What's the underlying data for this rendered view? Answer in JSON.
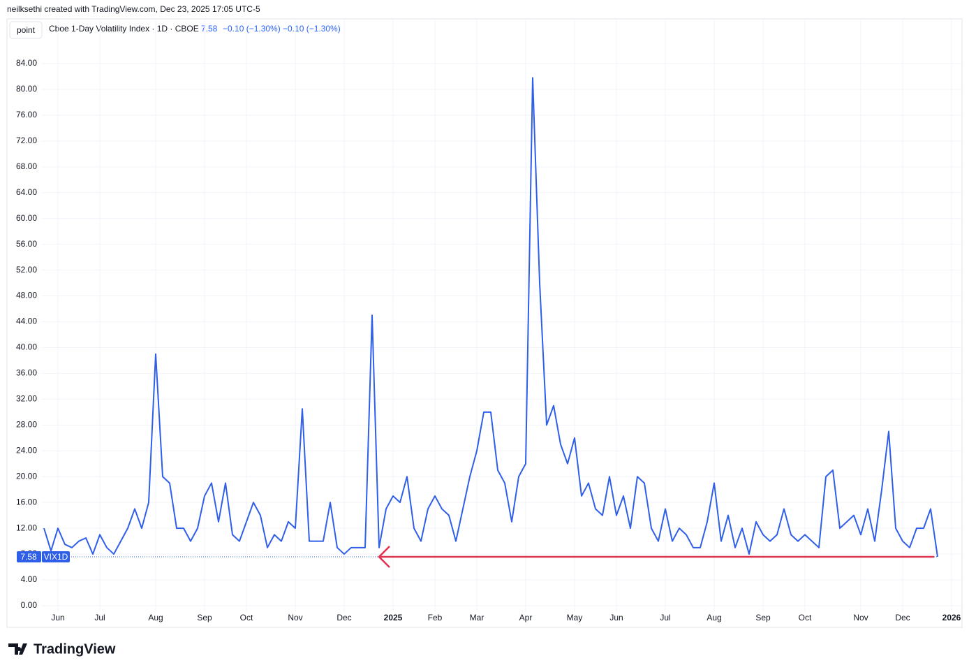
{
  "header": "neilksethi created with TradingView.com, Dec 23, 2025 17:05 UTC-5",
  "legend": {
    "button": "point",
    "instrument": "Cboe 1-Day Volatility Index · 1D · CBOE",
    "change": "−0.10 (−1.30%)"
  },
  "price_tag": "VIX1D",
  "branding": "TradingView",
  "chart_data": {
    "type": "line",
    "categories": [
      null,
      null,
      "Jun",
      null,
      null,
      null,
      null,
      null,
      "Jul",
      null,
      null,
      null,
      null,
      null,
      null,
      null,
      "Aug",
      null,
      null,
      null,
      null,
      null,
      null,
      "Sep",
      null,
      null,
      null,
      null,
      null,
      "Oct",
      null,
      null,
      null,
      null,
      null,
      null,
      "Nov",
      null,
      null,
      null,
      null,
      null,
      null,
      "Dec",
      null,
      null,
      null,
      null,
      null,
      null,
      "2025",
      null,
      null,
      null,
      null,
      null,
      "Feb",
      null,
      null,
      null,
      null,
      null,
      "Mar",
      null,
      null,
      null,
      null,
      null,
      null,
      "Apr",
      null,
      null,
      null,
      null,
      null,
      null,
      "May",
      null,
      null,
      null,
      null,
      null,
      "Jun",
      null,
      null,
      null,
      null,
      null,
      null,
      "Jul",
      null,
      null,
      null,
      null,
      null,
      null,
      "Aug",
      null,
      null,
      null,
      null,
      null,
      null,
      "Sep",
      null,
      null,
      null,
      null,
      null,
      "Oct",
      null,
      null,
      null,
      null,
      null,
      null,
      null,
      "Nov",
      null,
      null,
      null,
      null,
      null,
      "Dec",
      null,
      null,
      null,
      null,
      null,
      null,
      "2026"
    ],
    "series": [
      {
        "name": "VIX1D",
        "color": "#2f5fe8",
        "values": [
          12,
          8.5,
          12,
          9.5,
          9,
          10,
          10.5,
          8,
          11,
          9,
          8,
          10,
          12,
          15,
          12,
          16,
          39,
          20,
          19,
          12,
          12,
          10,
          12,
          17,
          19,
          13,
          19,
          11,
          10,
          13,
          16,
          14,
          9,
          11,
          10,
          13,
          12,
          30.5,
          10,
          10,
          10,
          16,
          9,
          8,
          9,
          9,
          9,
          45,
          9,
          15,
          17,
          16,
          20,
          12,
          10,
          15,
          17,
          15,
          14,
          10,
          15,
          20,
          24,
          30,
          30,
          21,
          19,
          13,
          20,
          22,
          81.8,
          50,
          28,
          31,
          25,
          22,
          26,
          17,
          19,
          15,
          14,
          20,
          14,
          17,
          12,
          20,
          19,
          12,
          10,
          15,
          10,
          12,
          11,
          9,
          9,
          13,
          19,
          10,
          14,
          9,
          12,
          8,
          13,
          11,
          10,
          11,
          15,
          11,
          10,
          11,
          10,
          9,
          20,
          21,
          12,
          13,
          14,
          11,
          15,
          10,
          18,
          27,
          12,
          10,
          9,
          12,
          12,
          15,
          7.58,
          null,
          null
        ]
      }
    ],
    "ylim": [
      -0.87,
      87.9
    ],
    "yticks": [
      {
        "value": 0,
        "label": "0.00"
      },
      {
        "value": 4,
        "label": "4.00"
      },
      {
        "value": 8,
        "label": "8.00"
      },
      {
        "value": 12,
        "label": "12.00"
      },
      {
        "value": 16,
        "label": "16.00"
      },
      {
        "value": 20,
        "label": "20.00"
      },
      {
        "value": 24,
        "label": "24.00"
      },
      {
        "value": 28,
        "label": "28.00"
      },
      {
        "value": 32,
        "label": "32.00"
      },
      {
        "value": 36,
        "label": "36.00"
      },
      {
        "value": 40,
        "label": "40.00"
      },
      {
        "value": 44,
        "label": "44.00"
      },
      {
        "value": 48,
        "label": "48.00"
      },
      {
        "value": 52,
        "label": "52.00"
      },
      {
        "value": 56,
        "label": "56.00"
      },
      {
        "value": 60,
        "label": "60.00"
      },
      {
        "value": 64,
        "label": "64.00"
      },
      {
        "value": 68,
        "label": "68.00"
      },
      {
        "value": 72,
        "label": "72.00"
      },
      {
        "value": 76,
        "label": "76.00"
      },
      {
        "value": 80,
        "label": "80.00"
      },
      {
        "value": 84,
        "label": "84.00"
      }
    ],
    "grid": true
  }
}
